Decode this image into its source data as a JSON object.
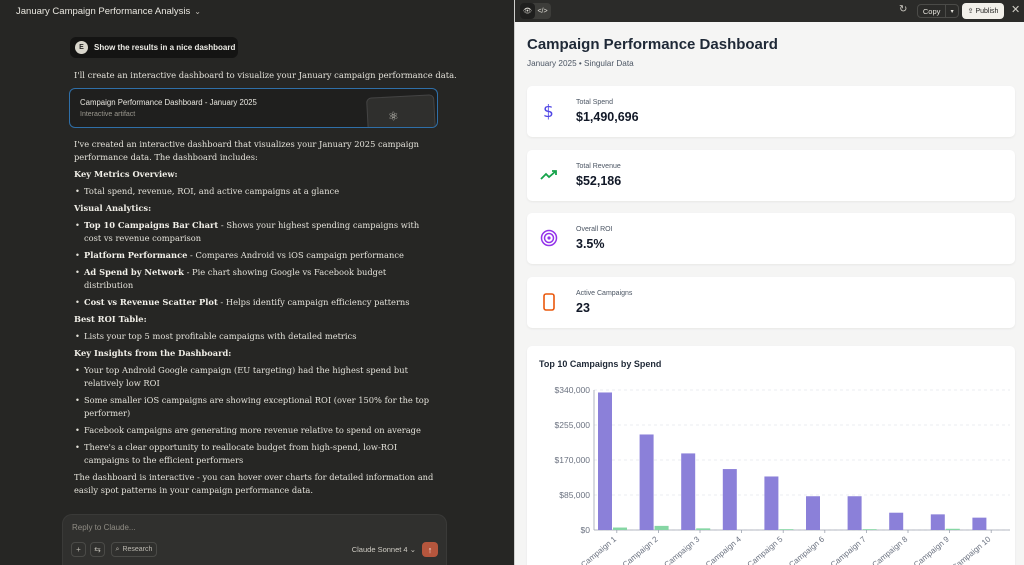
{
  "conversation": {
    "title": "January Campaign Performance Analysis",
    "user_avatar": "E",
    "user_message": "Show the results in a nice dashboard",
    "intro": "I'll create an interactive dashboard to visualize your January campaign performance data.",
    "artifact": {
      "title": "Campaign Performance Dashboard - January 2025",
      "subtitle": "Interactive artifact"
    },
    "p1": "I've created an interactive dashboard that visualizes your January 2025 campaign performance data. The dashboard includes:",
    "h_key_metrics": "Key Metrics Overview:",
    "key_metrics_item": "Total spend, revenue, ROI, and active campaigns at a glance",
    "h_visual": "Visual Analytics:",
    "visual_items": [
      {
        "bold": "Top 10 Campaigns Bar Chart",
        "rest": " - Shows your highest spending campaigns with cost vs revenue comparison"
      },
      {
        "bold": "Platform Performance",
        "rest": " - Compares Android vs iOS campaign performance"
      },
      {
        "bold": "Ad Spend by Network",
        "rest": " - Pie chart showing Google vs Facebook budget distribution"
      },
      {
        "bold": "Cost vs Revenue Scatter Plot",
        "rest": " - Helps identify campaign efficiency patterns"
      }
    ],
    "h_best": "Best ROI Table:",
    "best_item": "Lists your top 5 most profitable campaigns with detailed metrics",
    "h_insights": "Key Insights from the Dashboard:",
    "insight_items": [
      "Your top Android Google campaign (EU targeting) had the highest spend but relatively low ROI",
      "Some smaller iOS campaigns are showing exceptional ROI (over 150% for the top performer)",
      "Facebook campaigns are generating more revenue relative to spend on average",
      "There's a clear opportunity to reallocate budget from high-spend, low-ROI campaigns to the efficient performers"
    ],
    "closing": "The dashboard is interactive - you can hover over charts for detailed information and easily spot patterns in your campaign performance data."
  },
  "composer": {
    "placeholder": "Reply to Claude...",
    "research_label": "Research",
    "model": "Claude Sonnet 4"
  },
  "artifact_toolbar": {
    "copy_label": "Copy",
    "publish_label": "Publish"
  },
  "dashboard": {
    "title": "Campaign Performance Dashboard",
    "subtitle": "January 2025 • Singular Data",
    "kpis": [
      {
        "label": "Total Spend",
        "value": "$1,490,696",
        "icon": "dollar-icon",
        "color": "#4f46e5"
      },
      {
        "label": "Total Revenue",
        "value": "$52,186",
        "icon": "trend-up-icon",
        "color": "#16a34a"
      },
      {
        "label": "Overall ROI",
        "value": "3.5%",
        "icon": "target-icon",
        "color": "#9333ea"
      },
      {
        "label": "Active Campaigns",
        "value": "23",
        "icon": "phone-icon",
        "color": "#ea580c"
      }
    ],
    "chart_title": "Top 10 Campaigns by Spend"
  },
  "chart_data": {
    "type": "bar",
    "title": "Top 10 Campaigns by Spend",
    "categories": [
      "Campaign 1",
      "Campaign 2",
      "Campaign 3",
      "Campaign 4",
      "Campaign 5",
      "Campaign 6",
      "Campaign 7",
      "Campaign 8",
      "Campaign 9",
      "Campaign 10"
    ],
    "series": [
      {
        "values": [
          334000,
          232000,
          186000,
          148000,
          130000,
          82000,
          82000,
          42000,
          38000,
          30000
        ],
        "color": "#8b80d9"
      },
      {
        "values": [
          6000,
          10000,
          4000,
          0,
          2000,
          0,
          2000,
          0,
          3000,
          0
        ],
        "color": "#86d6a4"
      }
    ],
    "yticks": [
      "$0",
      "$85,000",
      "$170,000",
      "$255,000",
      "$340,000"
    ],
    "ylim": [
      0,
      340000
    ],
    "grid": true
  }
}
